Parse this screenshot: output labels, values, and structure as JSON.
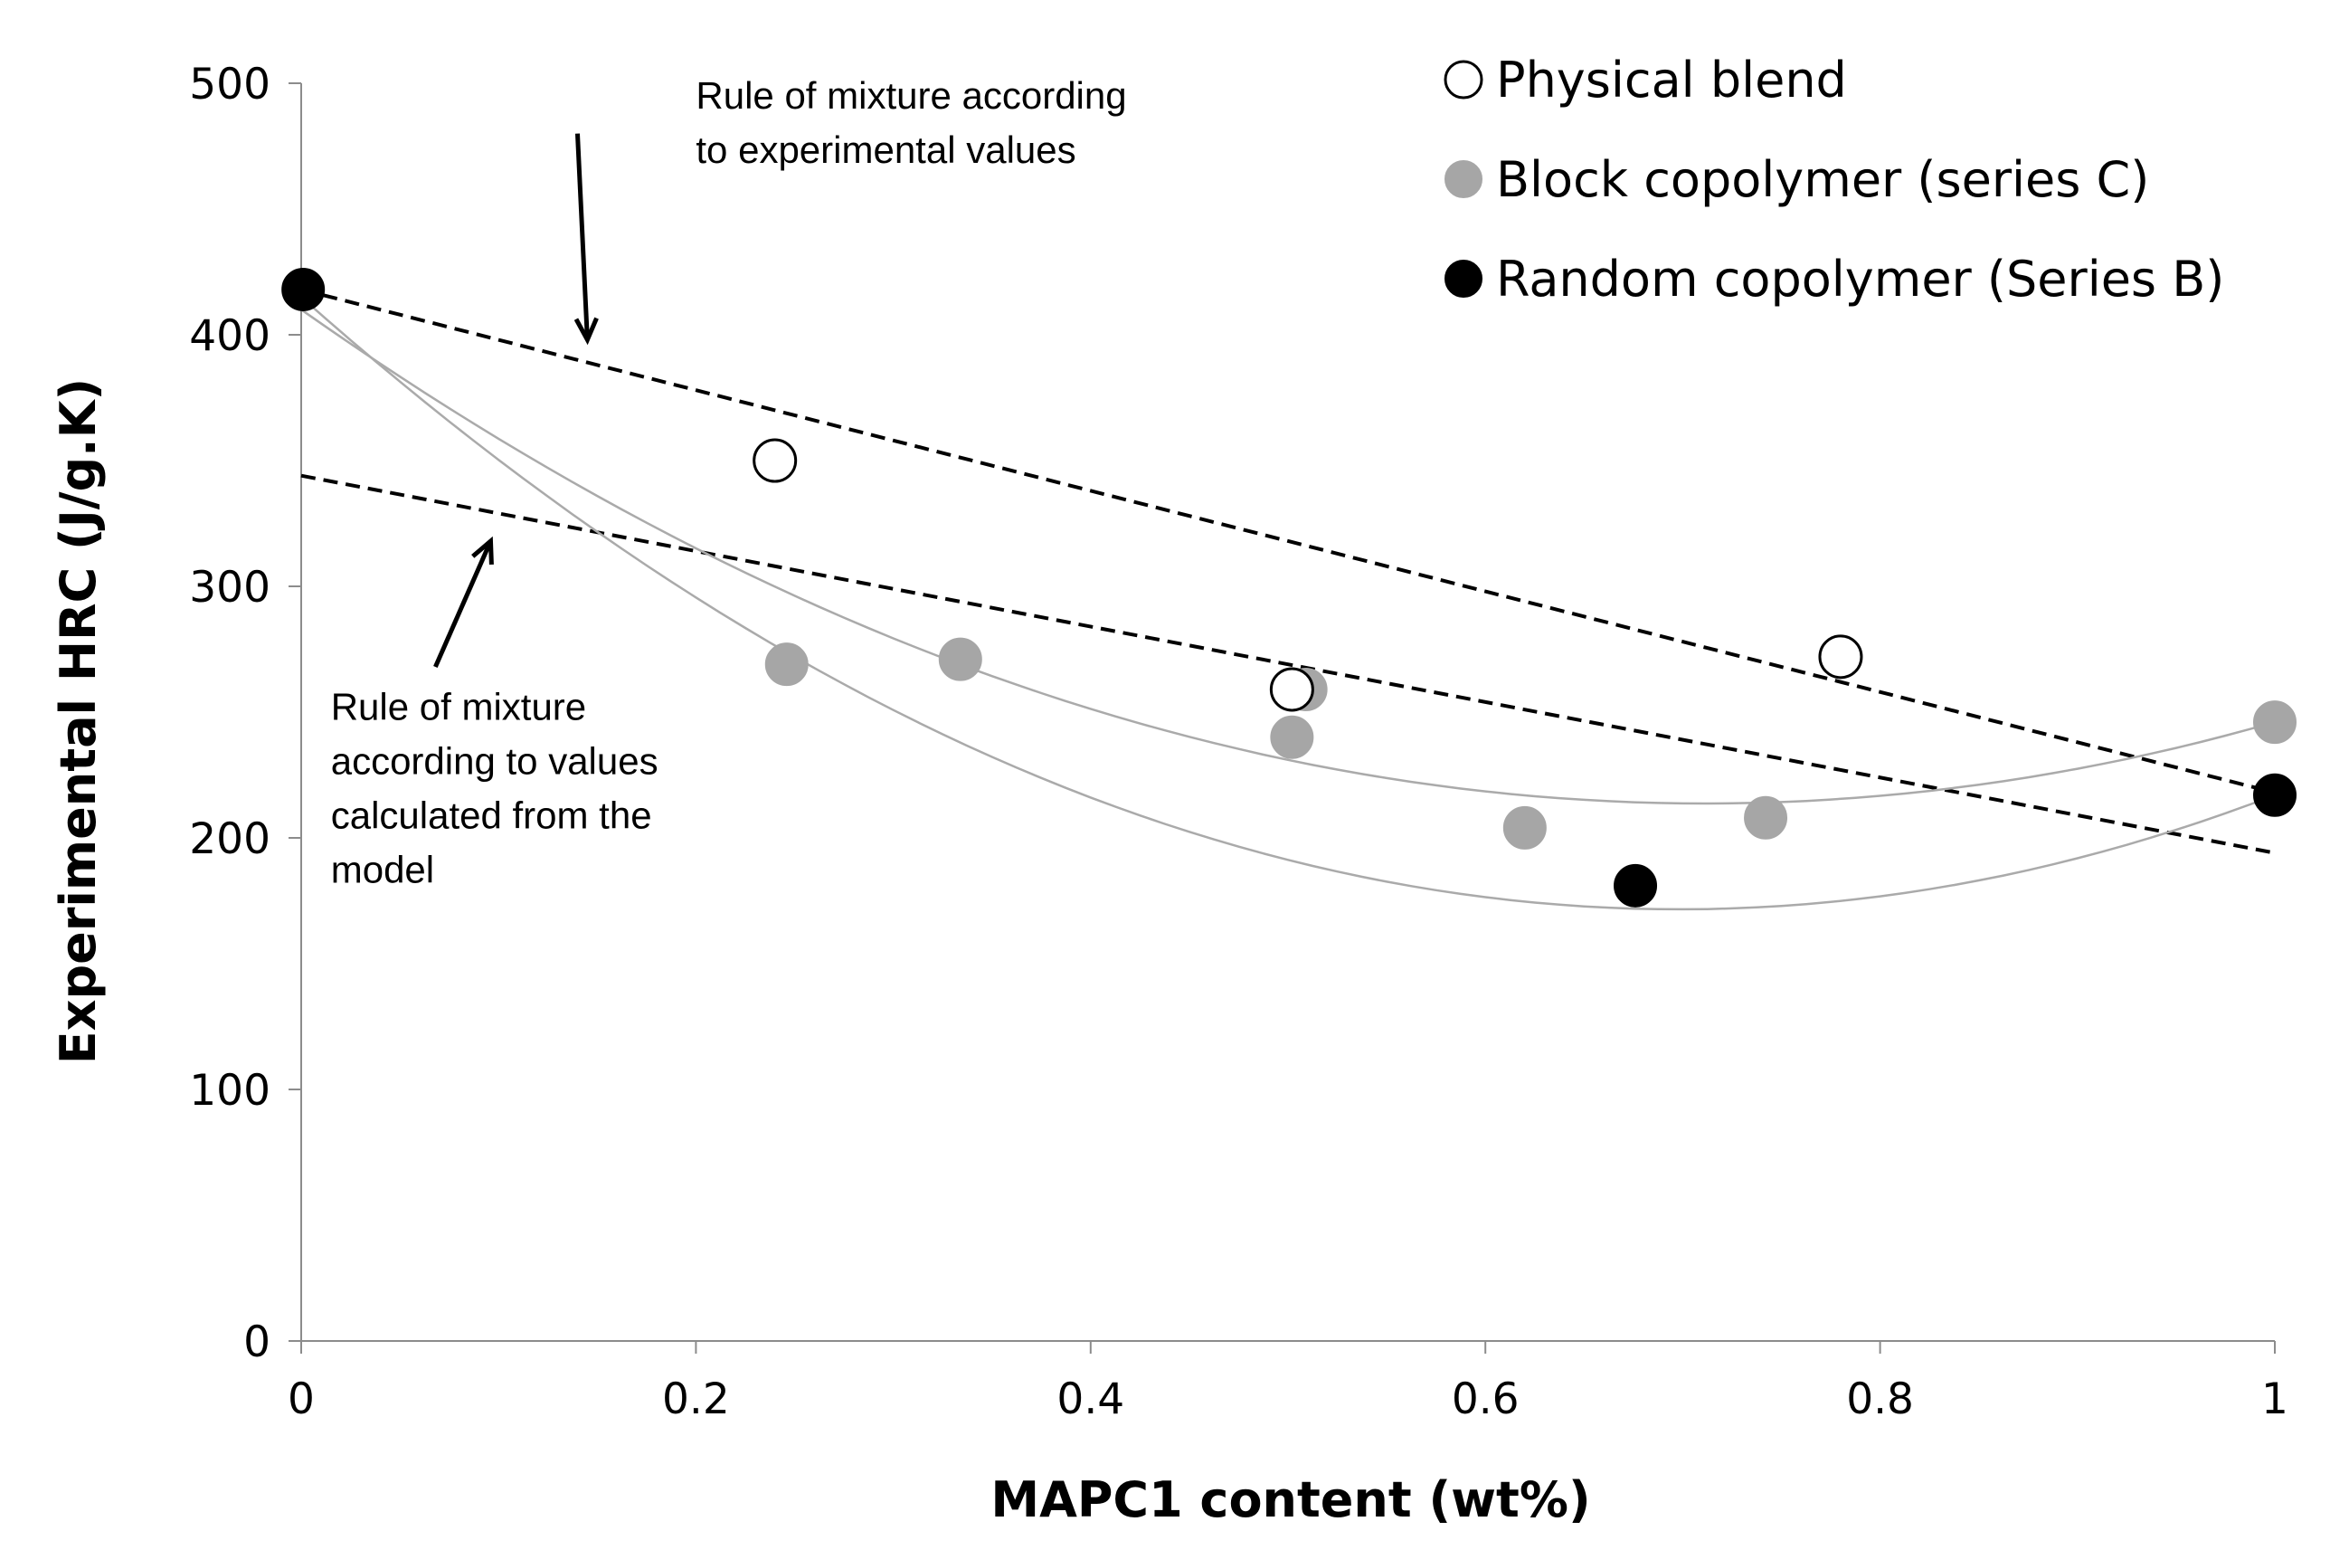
{
  "chart_data": {
    "type": "scatter",
    "title": "",
    "xlabel": "MAPC1 content (wt%)",
    "ylabel": "Experimental HRC (J/g.K)",
    "xlim": [
      0,
      1
    ],
    "ylim": [
      0,
      500
    ],
    "x_ticks": [
      0,
      0.2,
      0.4,
      0.6,
      0.8,
      1
    ],
    "x_tick_labels": [
      "0",
      "0.2",
      "0.4",
      "0.6",
      "0.8",
      "1"
    ],
    "y_ticks": [
      0,
      100,
      200,
      300,
      400,
      500
    ],
    "y_tick_labels": [
      "0",
      "100",
      "200",
      "300",
      "400",
      "500"
    ],
    "grid": false,
    "legend_position": "top-right",
    "series": [
      {
        "name": "Physical blend",
        "marker": "open-circle",
        "color": "#000000",
        "fill": "#ffffff",
        "points": [
          [
            0.24,
            350
          ],
          [
            0.502,
            259
          ],
          [
            0.78,
            272
          ]
        ]
      },
      {
        "name": "Block copolymer (series C)",
        "marker": "filled-circle",
        "color": "#a6a6a6",
        "points": [
          [
            0.246,
            269
          ],
          [
            0.334,
            271
          ],
          [
            0.502,
            240
          ],
          [
            0.509,
            259
          ],
          [
            0.62,
            204
          ],
          [
            0.742,
            208
          ],
          [
            1.0,
            246
          ]
        ]
      },
      {
        "name": "Random copolymer (Series B)",
        "marker": "filled-circle",
        "color": "#000000",
        "points": [
          [
            0.001,
            418
          ],
          [
            0.676,
            181
          ],
          [
            1.0,
            217
          ]
        ]
      }
    ],
    "fit_curves": [
      {
        "name": "block-trend",
        "color": "#aaaaaa",
        "x0": 0,
        "x1": 1,
        "coefficients": [
          410,
          -552,
          388
        ]
      },
      {
        "name": "random-trend",
        "color": "#aaaaaa",
        "x0": 0,
        "x1": 1,
        "coefficients": [
          415,
          -697,
          499
        ]
      }
    ],
    "rule_lines": [
      {
        "name": "experimental",
        "style": "dashed",
        "color": "#000000",
        "points": [
          [
            0,
            418
          ],
          [
            1,
            218
          ]
        ]
      },
      {
        "name": "model",
        "style": "dashed",
        "color": "#000000",
        "points": [
          [
            0,
            344
          ],
          [
            1,
            194
          ]
        ]
      }
    ],
    "annotations": [
      {
        "name": "rule-experimental",
        "lines": [
          "Rule of mixture according",
          "to  experimental values"
        ],
        "anchor": [
          0.2,
          490
        ],
        "arrow_from": [
          0.14,
          480
        ],
        "arrow_to": [
          0.145,
          398
        ]
      },
      {
        "name": "rule-model",
        "lines": [
          "Rule of mixture",
          "according to  values",
          "calculated from the",
          "model"
        ],
        "anchor": [
          0.015,
          247
        ],
        "arrow_from": [
          0.068,
          268
        ],
        "arrow_to": [
          0.096,
          318
        ]
      }
    ]
  }
}
